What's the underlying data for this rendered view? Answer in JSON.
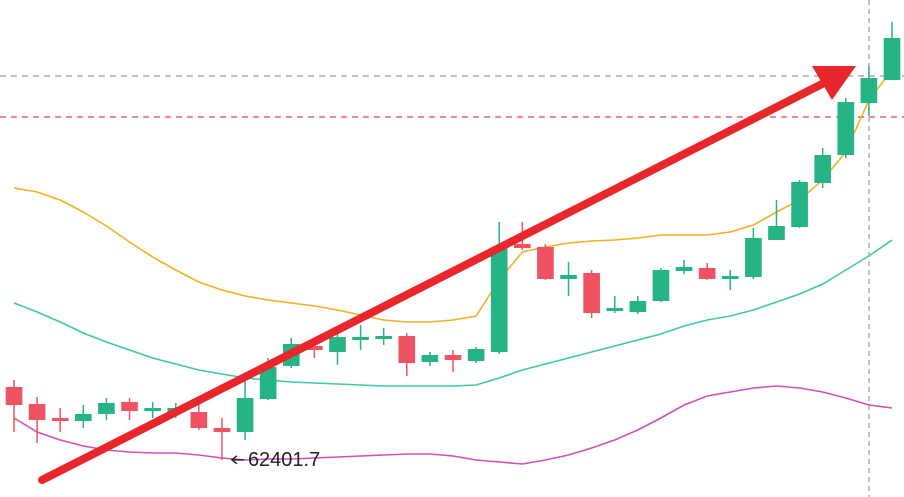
{
  "chart_data": {
    "type": "candlestick",
    "ylim": [
      62030,
      67000
    ],
    "up_color": "#26b385",
    "down_color": "#ef5361",
    "open": [
      63130,
      62960,
      62820,
      62790,
      62860,
      62980,
      62890,
      62880,
      62880,
      62720,
      62680,
      63010,
      63340,
      63540,
      63480,
      63600,
      63610,
      63640,
      63380,
      63450,
      63390,
      63480,
      64560,
      64530,
      64210,
      64270,
      63890,
      63880,
      63990,
      64290,
      64320,
      64210,
      64230,
      64600,
      64730,
      65170,
      65450,
      65970,
      66200
    ],
    "high": [
      63200,
      63030,
      62920,
      62950,
      63020,
      63020,
      62980,
      62970,
      62970,
      62820,
      63200,
      63420,
      63620,
      63620,
      63700,
      63750,
      63720,
      63670,
      63480,
      63500,
      63530,
      64780,
      64780,
      64560,
      64380,
      64300,
      64040,
      64040,
      64320,
      64400,
      64370,
      64300,
      64720,
      65000,
      65200,
      65520,
      66020,
      66340,
      66780
    ],
    "low": [
      62680,
      62570,
      62680,
      62720,
      62800,
      62800,
      62820,
      62820,
      62700,
      62401.7,
      62600,
      63000,
      63320,
      63420,
      63350,
      63500,
      63550,
      63240,
      63340,
      63280,
      63370,
      63460,
      64500,
      64200,
      64040,
      63820,
      63870,
      63860,
      63980,
      64260,
      64200,
      64100,
      64210,
      64600,
      64720,
      65120,
      65420,
      65840,
      66200
    ],
    "close": [
      62950,
      62800,
      62790,
      62860,
      62970,
      62890,
      62920,
      62920,
      62720,
      62680,
      63020,
      63330,
      63560,
      63500,
      63630,
      63630,
      63640,
      63370,
      63450,
      63400,
      63510,
      64520,
      64520,
      64210,
      64250,
      63870,
      63920,
      63990,
      64300,
      64330,
      64210,
      64240,
      64620,
      64740,
      65180,
      65450,
      65980,
      66220,
      66620
    ],
    "lines": [
      {
        "color": "#f0b21e",
        "values": [
          65120,
          65080,
          65000,
          64880,
          64740,
          64580,
          64430,
          64300,
          64180,
          64100,
          64040,
          64000,
          63970,
          63940,
          63900,
          63850,
          63800,
          63780,
          63780,
          63800,
          63840,
          64200,
          64480,
          64530,
          64570,
          64590,
          64600,
          64620,
          64650,
          64650,
          64650,
          64680,
          64750,
          64880,
          65000,
          65200,
          65480,
          66000,
          66300
        ]
      },
      {
        "color": "#3dcaa6",
        "values": [
          63970,
          63880,
          63780,
          63670,
          63580,
          63500,
          63420,
          63360,
          63300,
          63260,
          63220,
          63200,
          63180,
          63170,
          63160,
          63150,
          63140,
          63140,
          63140,
          63140,
          63150,
          63220,
          63300,
          63360,
          63420,
          63480,
          63540,
          63600,
          63660,
          63740,
          63800,
          63840,
          63900,
          63980,
          64060,
          64160,
          64300,
          64440,
          64600
        ]
      },
      {
        "color": "#d64fb4",
        "values": [
          62820,
          62680,
          62600,
          62540,
          62500,
          62480,
          62470,
          62470,
          62450,
          62420,
          62400,
          62410,
          62410,
          62420,
          62430,
          62440,
          62450,
          62460,
          62460,
          62440,
          62400,
          62380,
          62360,
          62400,
          62450,
          62520,
          62600,
          62700,
          62820,
          62950,
          63040,
          63080,
          63120,
          63140,
          63120,
          63080,
          63020,
          62950,
          62920
        ]
      }
    ],
    "price_lines": [
      {
        "value": 66240,
        "color": "#9a9a9a"
      },
      {
        "value": 65830,
        "color": "#e0434b"
      }
    ]
  }
}
